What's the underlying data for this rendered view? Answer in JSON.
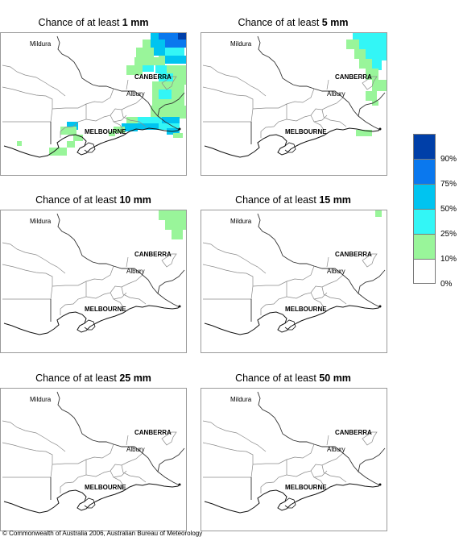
{
  "panels": [
    {
      "prefix": "Chance of at least ",
      "amount": "1 mm"
    },
    {
      "prefix": "Chance of at least ",
      "amount": "5 mm"
    },
    {
      "prefix": "Chance of at least ",
      "amount": "10 mm"
    },
    {
      "prefix": "Chance of at least ",
      "amount": "15 mm"
    },
    {
      "prefix": "Chance of at least ",
      "amount": "25 mm"
    },
    {
      "prefix": "Chance of at least ",
      "amount": "50 mm"
    }
  ],
  "places": {
    "mildura": "Mildura",
    "canberra": "CANBERRA",
    "albury": "Albury",
    "melbourne": "MELBOURNE"
  },
  "legend": {
    "colors": [
      "#003fa8",
      "#0a78ee",
      "#00c4f0",
      "#33f6f6",
      "#99f59a",
      "#ffffff"
    ],
    "labels": [
      "90%",
      "75%",
      "50%",
      "25%",
      "10%",
      "0%"
    ]
  },
  "footer": "© Commonwealth of Australia 2006, Australian Bureau of Meteorology"
}
